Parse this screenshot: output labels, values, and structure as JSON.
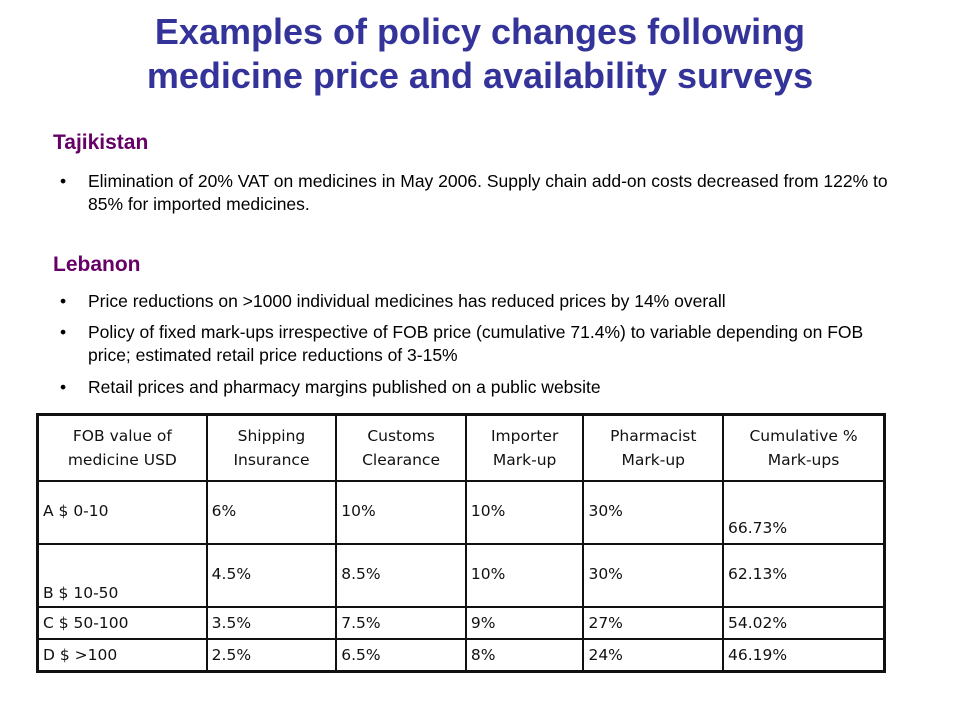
{
  "title_line1": "Examples of policy changes following",
  "title_line2": "medicine price and availability surveys",
  "sections": [
    {
      "heading": "Tajikistan",
      "bullets": [
        "Elimination of 20% VAT on medicines in May 2006. Supply chain add-on costs decreased from 122% to 85% for imported medicines."
      ]
    },
    {
      "heading": "Lebanon",
      "bullets": [
        "Price reductions on >1000 individual medicines has reduced prices by 14% overall",
        "Policy of fixed mark-ups irrespective of FOB price (cumulative 71.4%) to variable depending on FOB price; estimated retail price reductions of 3-15%",
        "Retail prices and pharmacy margins published on a public website"
      ]
    }
  ],
  "bullet_char": "•",
  "table": {
    "headers": [
      [
        "FOB value of",
        "medicine USD"
      ],
      [
        "Shipping",
        "Insurance"
      ],
      [
        "Customs",
        "Clearance"
      ],
      [
        "Importer",
        "Mark-up"
      ],
      [
        "Pharmacist",
        "Mark-up"
      ],
      [
        "Cumulative %",
        "Mark-ups"
      ]
    ],
    "rows": [
      [
        "A $ 0-10",
        "6%",
        "10%",
        "10%",
        "30%",
        "66.73%"
      ],
      [
        "B $ 10-50",
        "4.5%",
        "8.5%",
        "10%",
        "30%",
        "62.13%"
      ],
      [
        "C $ 50-100",
        "3.5%",
        "7.5%",
        "9%",
        "27%",
        "54.02%"
      ],
      [
        "D $ >100",
        "2.5%",
        "6.5%",
        "8%",
        "24%",
        "46.19%"
      ]
    ]
  }
}
